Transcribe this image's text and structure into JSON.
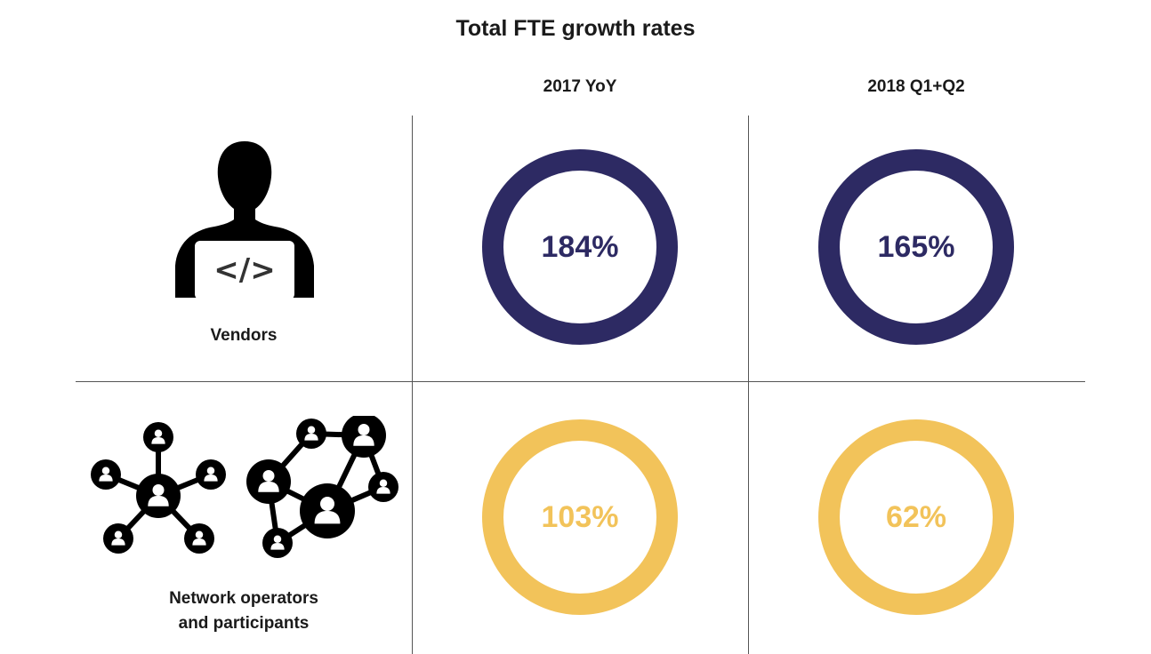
{
  "title": "Total FTE growth rates",
  "columns": [
    "2017 YoY",
    "2018 Q1+Q2"
  ],
  "rows": [
    {
      "label_lines": [
        "Vendors"
      ],
      "icon": "developer-laptop-icon",
      "color": "#2d2a63"
    },
    {
      "label_lines": [
        "Network operators",
        "and participants"
      ],
      "icon": "network-people-icon",
      "color": "#f2c35a"
    }
  ],
  "chart_data": {
    "type": "table",
    "title": "Total FTE growth rates",
    "unit": "%",
    "columns": [
      "2017 YoY",
      "2018 Q1+Q2"
    ],
    "rows": [
      "Vendors",
      "Network operators and participants"
    ],
    "values": [
      [
        184,
        165
      ],
      [
        103,
        62
      ]
    ],
    "labels": [
      [
        "184%",
        "165%"
      ],
      [
        "103%",
        "62%"
      ]
    ]
  }
}
